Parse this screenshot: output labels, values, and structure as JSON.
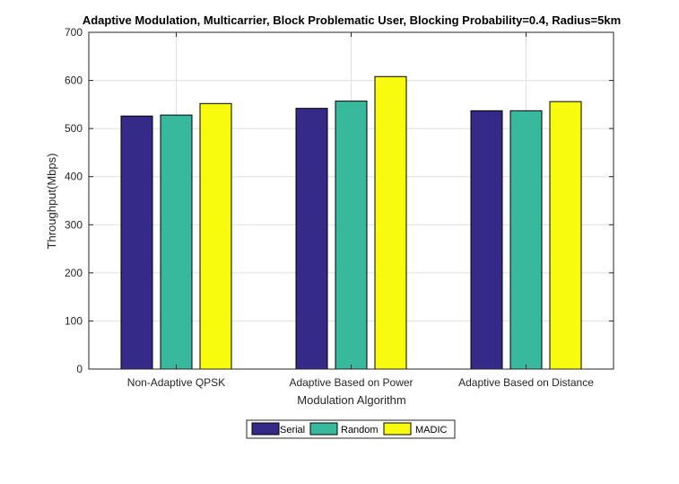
{
  "chart_data": {
    "type": "bar",
    "title": "Adaptive Modulation, Multicarrier, Block Problematic User, Blocking Probability=0.4, Radius=5km",
    "xlabel": "Modulation Algorithm",
    "ylabel": "Throughput(Mbps)",
    "categories": [
      "Non-Adaptive QPSK",
      "Adaptive Based on Power",
      "Adaptive Based on Distance"
    ],
    "series": [
      {
        "name": "Serial",
        "values": [
          526,
          542,
          537
        ],
        "color": "#352a87"
      },
      {
        "name": "Random",
        "values": [
          528,
          557,
          537
        ],
        "color": "#38b99e"
      },
      {
        "name": "MADIC",
        "values": [
          552,
          608,
          556
        ],
        "color": "#f9fb0e"
      }
    ],
    "ylim": [
      0,
      700
    ],
    "yticks": [
      0,
      100,
      200,
      300,
      400,
      500,
      600,
      700
    ],
    "grid": true,
    "legend_position": "bottom"
  }
}
